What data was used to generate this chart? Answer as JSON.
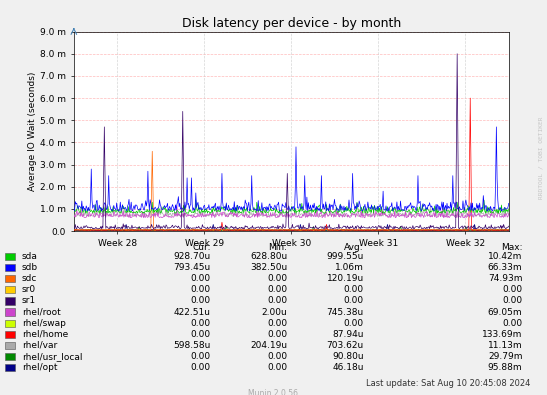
{
  "title": "Disk latency per device - by month",
  "ylabel": "Average IO Wait (seconds)",
  "yticks": [
    "0.0",
    "1.0 m",
    "2.0 m",
    "3.0 m",
    "4.0 m",
    "5.0 m",
    "6.0 m",
    "7.0 m",
    "8.0 m",
    "9.0 m"
  ],
  "ytick_vals": [
    0.0,
    0.001,
    0.002,
    0.003,
    0.004,
    0.005,
    0.006,
    0.007,
    0.008,
    0.009
  ],
  "ylim": [
    0,
    0.009
  ],
  "xtick_labels": [
    "Week 28",
    "Week 29",
    "Week 30",
    "Week 31",
    "Week 32"
  ],
  "background_color": "#f0f0f0",
  "plot_bg_color": "#ffffff",
  "grid_color_h": "#ffaaaa",
  "grid_color_v": "#cccccc",
  "watermark": "RRDTOOL / TOBI OETIKER",
  "munin_text": "Munin 2.0.56",
  "last_update": "Last update: Sat Aug 10 20:45:08 2024",
  "legend": [
    {
      "label": "sda",
      "color": "#00cc00"
    },
    {
      "label": "sdb",
      "color": "#0000ff"
    },
    {
      "label": "sdc",
      "color": "#ff6600"
    },
    {
      "label": "sr0",
      "color": "#ffcc00"
    },
    {
      "label": "sr1",
      "color": "#330066"
    },
    {
      "label": "rhel/root",
      "color": "#cc44cc"
    },
    {
      "label": "rhel/swap",
      "color": "#ccff00"
    },
    {
      "label": "rhel/home",
      "color": "#ff0000"
    },
    {
      "label": "rhel/var",
      "color": "#aaaaaa"
    },
    {
      "label": "rhel/usr_local",
      "color": "#008800"
    },
    {
      "label": "rhel/opt",
      "color": "#000088"
    }
  ],
  "table_data": [
    [
      "sda",
      "928.70u",
      "628.80u",
      "999.55u",
      "10.42m"
    ],
    [
      "sdb",
      "793.45u",
      "382.50u",
      "1.06m",
      "66.33m"
    ],
    [
      "sdc",
      "0.00",
      "0.00",
      "120.19u",
      "74.93m"
    ],
    [
      "sr0",
      "0.00",
      "0.00",
      "0.00",
      "0.00"
    ],
    [
      "sr1",
      "0.00",
      "0.00",
      "0.00",
      "0.00"
    ],
    [
      "rhel/root",
      "422.51u",
      "2.00u",
      "745.38u",
      "69.05m"
    ],
    [
      "rhel/swap",
      "0.00",
      "0.00",
      "0.00",
      "0.00"
    ],
    [
      "rhel/home",
      "0.00",
      "0.00",
      "87.94u",
      "133.69m"
    ],
    [
      "rhel/var",
      "598.58u",
      "204.19u",
      "703.62u",
      "11.13m"
    ],
    [
      "rhel/usr_local",
      "0.00",
      "0.00",
      "90.80u",
      "29.79m"
    ],
    [
      "rhel/opt",
      "0.00",
      "0.00",
      "46.18u",
      "95.88m"
    ]
  ]
}
